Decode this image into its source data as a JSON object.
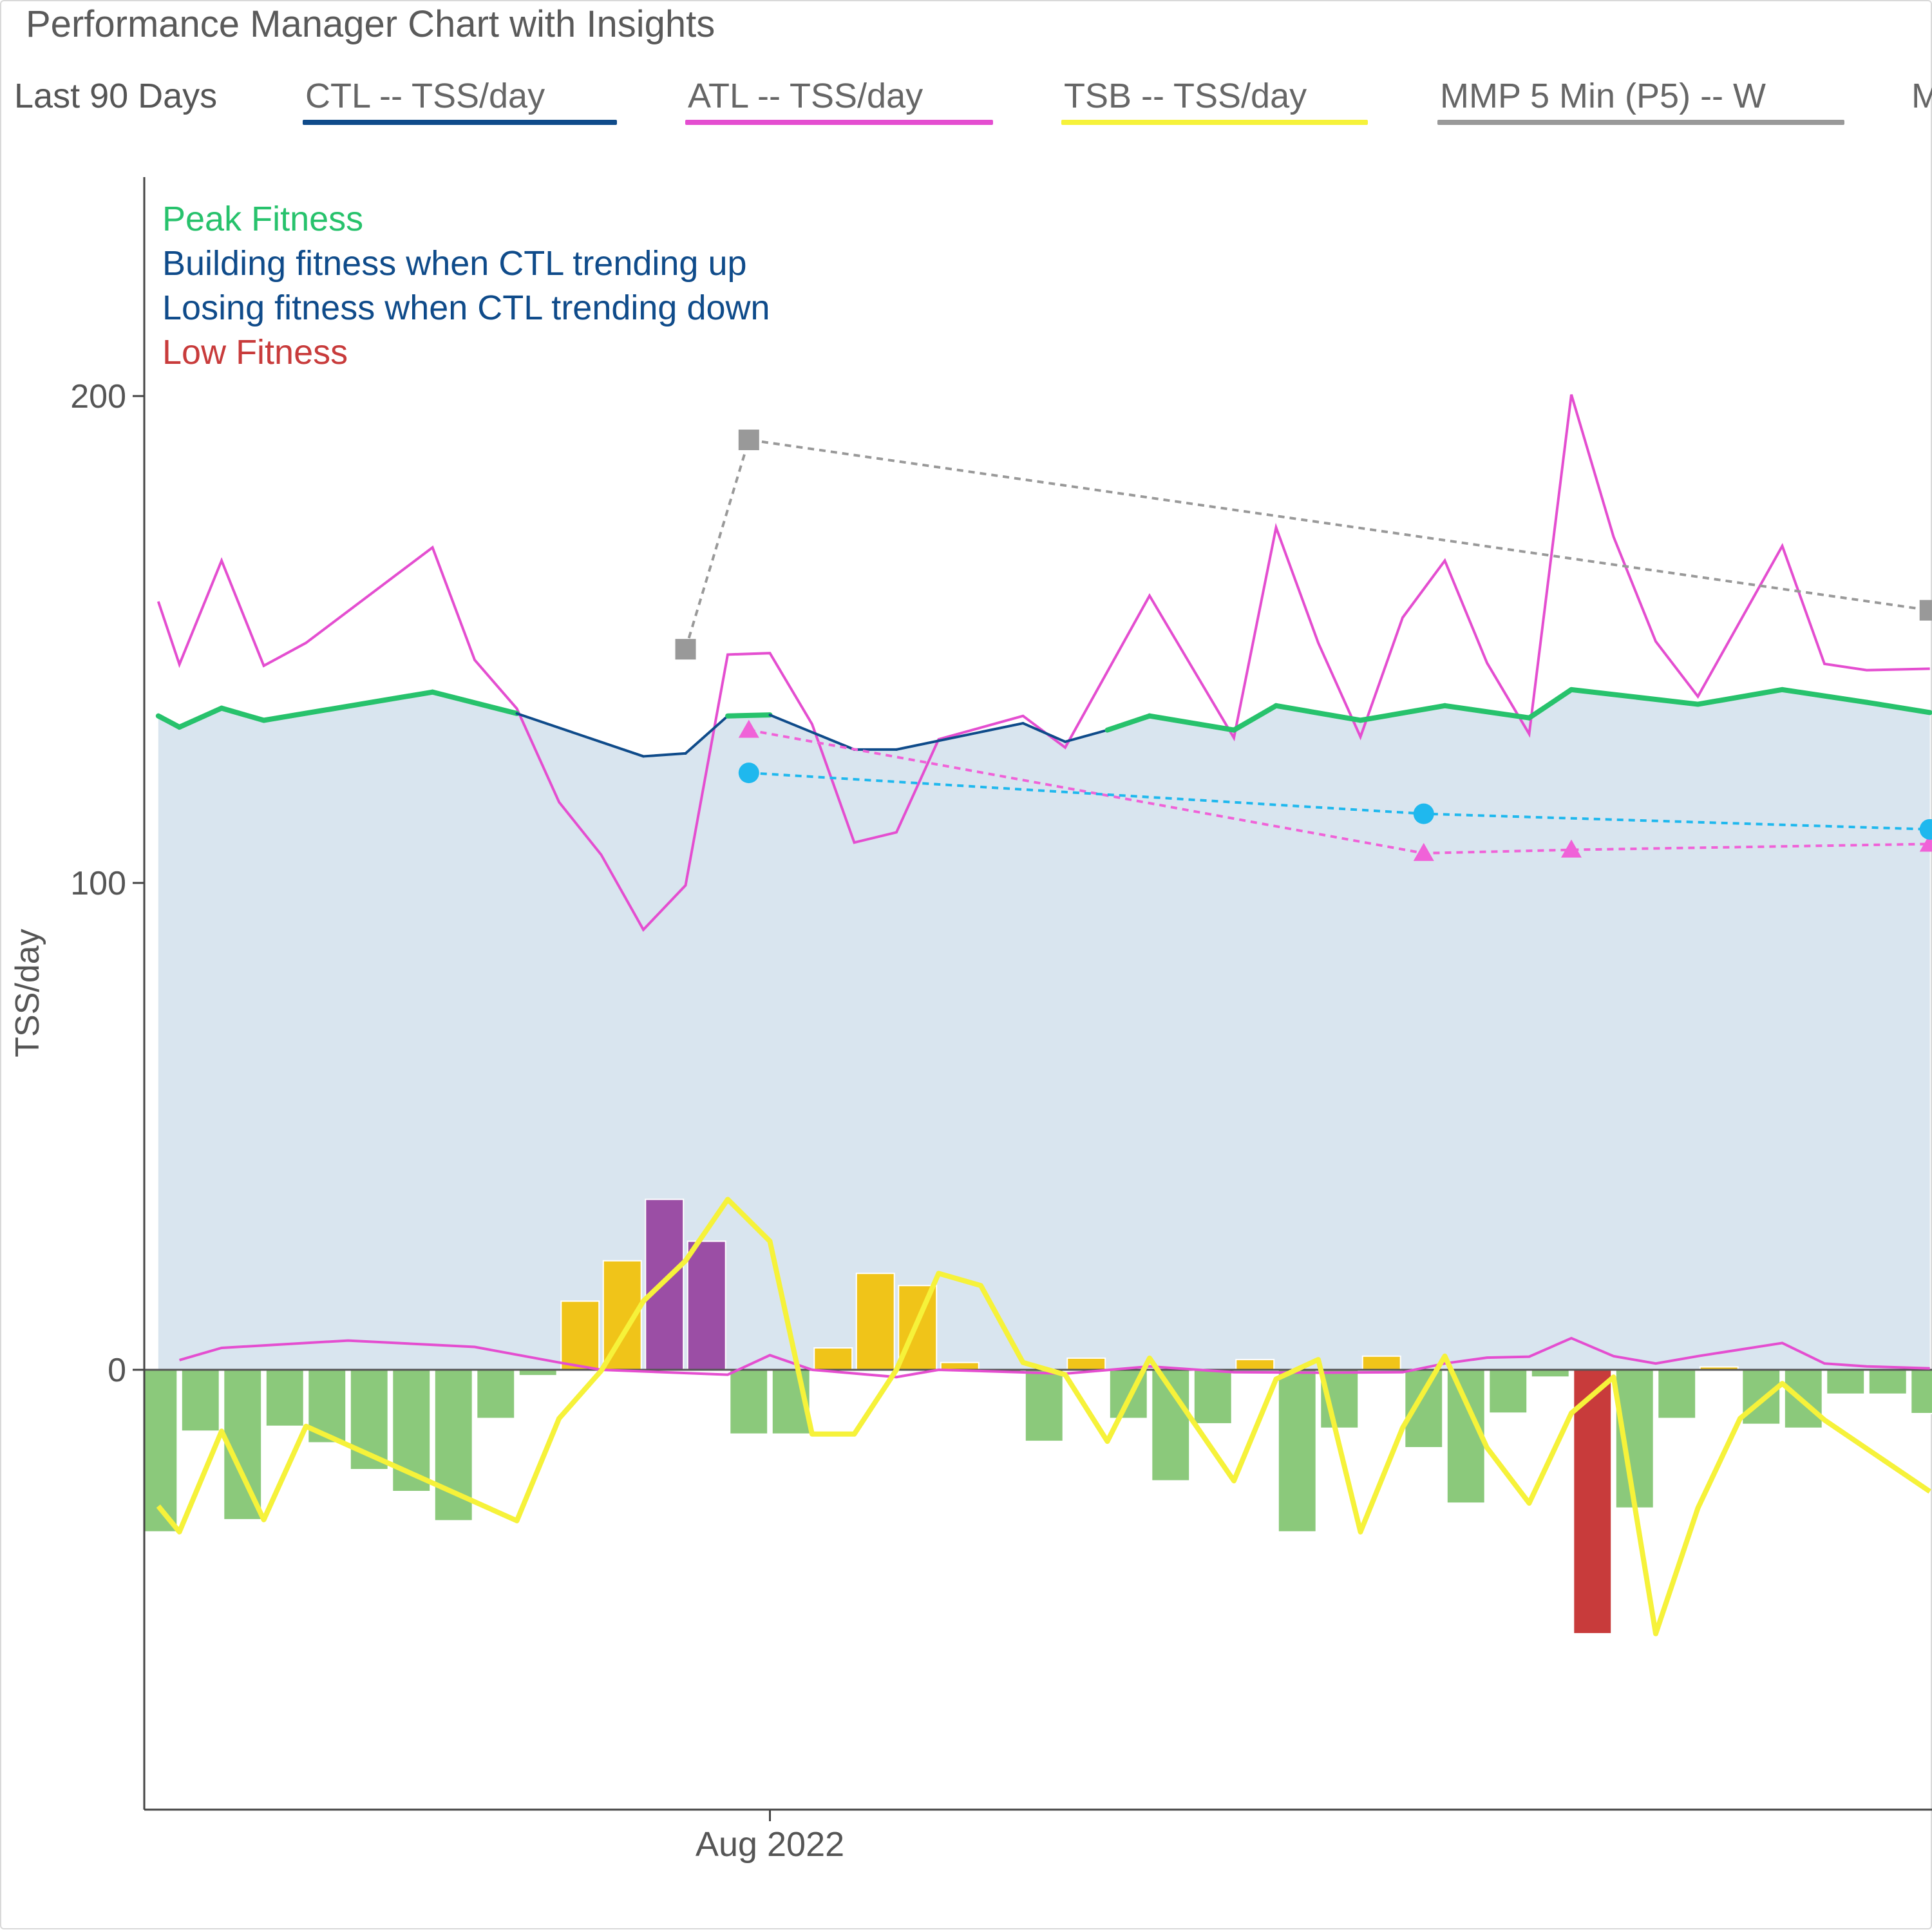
{
  "header": {
    "title": "Performance Manager Chart with Insights",
    "period": "Last 90 Days"
  },
  "legend": [
    {
      "label": "CTL  -- TSS/day",
      "color": "#0f4b8a"
    },
    {
      "label": "ATL  -- TSS/day",
      "color": "#e44ed0"
    },
    {
      "label": "TSB  -- TSS/day",
      "color": "#f6f23a"
    },
    {
      "label": "MMP 5 Min (P5)  -- W",
      "color": "#999999"
    },
    {
      "label": "M",
      "color": "#1fb8ee"
    }
  ],
  "insights": [
    {
      "text": "Peak Fitness",
      "color": "#27c26c"
    },
    {
      "text": "Building fitness when CTL trending up",
      "color": "#0f4b8a"
    },
    {
      "text": "Losing fitness when CTL trending down",
      "color": "#0f4b8a"
    },
    {
      "text": "Low Fitness",
      "color": "#c83b3b"
    }
  ],
  "chart_data": {
    "type": "line",
    "ylabel": "TSS/day",
    "y_ticks": [
      0,
      100,
      200
    ],
    "ylim": [
      -90,
      245
    ],
    "x_tick_labels": [
      {
        "day": 29,
        "label": "Aug 2022"
      }
    ],
    "colors": {
      "ctl_fill": "#d9e5ef",
      "ctl_peak": "#27c26c",
      "ctl_trend": "#0f4b8a",
      "atl": "#e44ed0",
      "tsb": "#f6f23a",
      "bar_positive": "#f0c419",
      "bar_high": "#9b4ea5",
      "bar_negative": "#8bc97b",
      "bar_low": "#c83b3b",
      "mmp": "#999999",
      "pink_markers": "#f062d8",
      "blue_markers": "#1fb8ee"
    },
    "ctl": [
      [
        0,
        134.3
      ],
      [
        1,
        132
      ],
      [
        3,
        135.9
      ],
      [
        5,
        133.4
      ],
      [
        13,
        139.2
      ],
      [
        17,
        134.8
      ],
      [
        23,
        126
      ],
      [
        25,
        126.6
      ],
      [
        27,
        134.3
      ],
      [
        29,
        134.5
      ],
      [
        33,
        127.4
      ],
      [
        35,
        127.4
      ],
      [
        41,
        132.8
      ],
      [
        43,
        129
      ],
      [
        45,
        131.4
      ],
      [
        47,
        134.3
      ],
      [
        51,
        131.4
      ],
      [
        53,
        136.4
      ],
      [
        57,
        133.4
      ],
      [
        61,
        136.4
      ],
      [
        65,
        133.9
      ],
      [
        67,
        139.7
      ],
      [
        73,
        136.7
      ],
      [
        77,
        139.7
      ],
      [
        81,
        137.1
      ],
      [
        84,
        135
      ]
    ],
    "ctl_peak_ranges": [
      [
        0,
        17
      ],
      [
        27,
        29
      ],
      [
        45,
        84
      ]
    ],
    "atl": [
      [
        0,
        157.8
      ],
      [
        1,
        144.9
      ],
      [
        3,
        166.2
      ],
      [
        5,
        144.6
      ],
      [
        7,
        149.3
      ],
      [
        13,
        168.9
      ],
      [
        15,
        145.8
      ],
      [
        17,
        135.8
      ],
      [
        19,
        116.6
      ],
      [
        21,
        105.8
      ],
      [
        23,
        90.4
      ],
      [
        25,
        99.5
      ],
      [
        27,
        146.9
      ],
      [
        29,
        147.2
      ],
      [
        31,
        132.6
      ],
      [
        33,
        108.3
      ],
      [
        35,
        110.4
      ],
      [
        37,
        129.5
      ],
      [
        41,
        134.3
      ],
      [
        43,
        127.8
      ],
      [
        47,
        159
      ],
      [
        51,
        129.8
      ],
      [
        53,
        173
      ],
      [
        55,
        149.3
      ],
      [
        57,
        130
      ],
      [
        59,
        154.5
      ],
      [
        61,
        166.2
      ],
      [
        63,
        145.2
      ],
      [
        65,
        130.6
      ],
      [
        67,
        200.3
      ],
      [
        69,
        171.1
      ],
      [
        71,
        149.6
      ],
      [
        73,
        138.3
      ],
      [
        77,
        169.2
      ],
      [
        79,
        145
      ],
      [
        81,
        143.7
      ],
      [
        84,
        144
      ]
    ],
    "atl_low": [
      [
        1,
        2
      ],
      [
        3,
        4.5
      ],
      [
        9,
        6
      ],
      [
        15,
        4.7
      ],
      [
        19,
        1.5
      ],
      [
        21,
        0
      ],
      [
        27,
        -1
      ],
      [
        29,
        3
      ],
      [
        31,
        0
      ],
      [
        35,
        -1.5
      ],
      [
        37,
        0
      ],
      [
        43,
        -0.8
      ],
      [
        47,
        0.7
      ],
      [
        51,
        -0.5
      ],
      [
        55,
        -0.6
      ],
      [
        59,
        -0.5
      ],
      [
        61,
        1.3
      ],
      [
        63,
        2.5
      ],
      [
        65,
        2.7
      ],
      [
        67,
        6.5
      ],
      [
        69,
        2.8
      ],
      [
        71,
        1.3
      ],
      [
        73,
        2.8
      ],
      [
        77,
        5.5
      ],
      [
        79,
        1.3
      ],
      [
        81,
        0.7
      ],
      [
        84,
        0.3
      ]
    ],
    "tsb": [
      [
        0,
        -28
      ],
      [
        1,
        -33.3
      ],
      [
        3,
        -12.6
      ],
      [
        5,
        -30.8
      ],
      [
        7,
        -11.6
      ],
      [
        17,
        -31
      ],
      [
        19,
        -10
      ],
      [
        21,
        -0.2
      ],
      [
        23,
        14.1
      ],
      [
        25,
        22.4
      ],
      [
        27,
        35
      ],
      [
        29,
        26.4
      ],
      [
        31,
        -13.2
      ],
      [
        33,
        -13.2
      ],
      [
        35,
        0
      ],
      [
        37,
        19.8
      ],
      [
        39,
        17.3
      ],
      [
        41,
        1.5
      ],
      [
        43,
        -1
      ],
      [
        45,
        -14.7
      ],
      [
        47,
        2.4
      ],
      [
        51,
        -22.8
      ],
      [
        53,
        -1.9
      ],
      [
        55,
        2.1
      ],
      [
        57,
        -33.3
      ],
      [
        59,
        -11.9
      ],
      [
        61,
        2.8
      ],
      [
        63,
        -16
      ],
      [
        65,
        -27.4
      ],
      [
        67,
        -8.9
      ],
      [
        69,
        -1.5
      ],
      [
        71,
        -54.2
      ],
      [
        73,
        -28.4
      ],
      [
        75,
        -10
      ],
      [
        77,
        -2.8
      ],
      [
        79,
        -10.3
      ],
      [
        84,
        -25
      ]
    ],
    "tsb_bars": [
      [
        0,
        -33.3
      ],
      [
        2,
        -12.6
      ],
      [
        4,
        -30.8
      ],
      [
        6,
        -11.6
      ],
      [
        8,
        -15
      ],
      [
        10,
        -20.5
      ],
      [
        12,
        -25
      ],
      [
        14,
        -31
      ],
      [
        16,
        -10
      ],
      [
        18,
        -1.2
      ],
      [
        20,
        14.1
      ],
      [
        22,
        22.4
      ],
      [
        24,
        35
      ],
      [
        26,
        26.4
      ],
      [
        28,
        -13.2
      ],
      [
        30,
        -13.2
      ],
      [
        32,
        4.5
      ],
      [
        34,
        19.8
      ],
      [
        36,
        17.3
      ],
      [
        38,
        1.5
      ],
      [
        40,
        -0.5
      ],
      [
        42,
        -14.7
      ],
      [
        44,
        2.4
      ],
      [
        46,
        -10
      ],
      [
        48,
        -22.8
      ],
      [
        50,
        -11.1
      ],
      [
        52,
        2.1
      ],
      [
        54,
        -33.3
      ],
      [
        56,
        -12
      ],
      [
        58,
        2.8
      ],
      [
        60,
        -16
      ],
      [
        62,
        -27.4
      ],
      [
        64,
        -8.9
      ],
      [
        66,
        -1.5
      ],
      [
        68,
        -54.2
      ],
      [
        70,
        -28.4
      ],
      [
        72,
        -10
      ],
      [
        74,
        0.6
      ],
      [
        76,
        -11.2
      ],
      [
        78,
        -12
      ],
      [
        80,
        -5
      ],
      [
        82,
        -5
      ],
      [
        84,
        -9
      ]
    ],
    "mmp": [
      [
        25,
        148
      ],
      [
        28,
        191
      ],
      [
        84,
        156
      ]
    ],
    "pink_markers": [
      [
        28,
        131.4
      ],
      [
        60,
        106.1
      ],
      [
        67,
        106.8
      ],
      [
        84,
        108
      ]
    ],
    "blue_markers": [
      [
        28,
        122.6
      ],
      [
        60,
        114.2
      ],
      [
        84,
        111
      ]
    ],
    "xlim": [
      -0.3,
      84.1
    ]
  }
}
